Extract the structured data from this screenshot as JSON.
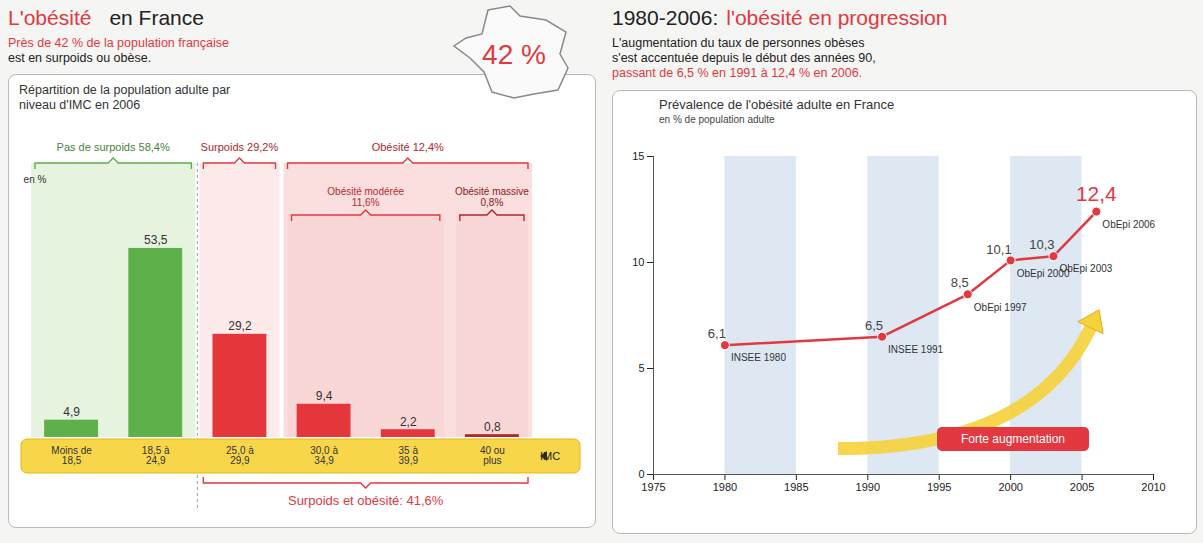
{
  "chart_data": [
    {
      "type": "bar",
      "title": "L'obésité en France",
      "subtitle": [
        "Près de 42 % de la population française",
        "est en surpoids ou obèse."
      ],
      "map_label": "42 %",
      "chart_title": "Répartition de la population adulte par niveau d'IMC en 2006",
      "unit_label": "en %",
      "x_label": "IMC",
      "categories": [
        "Moins de 18,5",
        "18,5 à 24,9",
        "25,0 à 29,9",
        "30,0 à 34,9",
        "35 à 39,9",
        "40 ou plus"
      ],
      "values": [
        4.9,
        53.5,
        29.2,
        9.4,
        2.2,
        0.8
      ],
      "value_labels": [
        "4,9",
        "53,5",
        "29,2",
        "9,4",
        "2,2",
        "0,8"
      ],
      "colors": [
        "#5db04a",
        "#5db04a",
        "#e5363c",
        "#e5363c",
        "#e5363c",
        "#b0282b"
      ],
      "ylim": [
        0,
        60
      ],
      "tick_labels": false,
      "data_labels": true,
      "groups": [
        {
          "name": "Pas de surpoids",
          "share": "58,4%",
          "categories": [
            "Moins de 18,5",
            "18,5 à 24,9"
          ]
        },
        {
          "name": "Surpoids",
          "share": "29,2%",
          "categories": [
            "25,0 à 29,9"
          ]
        },
        {
          "name": "Obésité",
          "share": "12,4%",
          "categories": [
            "30,0 à 34,9",
            "35 à 39,9",
            "40 ou plus"
          ],
          "subgroups": [
            {
              "name": "Obésité modérée",
              "share": "11,6%",
              "categories": [
                "30,0 à 34,9",
                "35 à 39,9"
              ]
            },
            {
              "name": "Obésité massive",
              "share": "0,8%",
              "categories": [
                "40 ou plus"
              ]
            }
          ]
        }
      ],
      "total": {
        "label": "Surpoids et obésité: 41,6%",
        "categories": [
          "25,0 à 29,9",
          "30,0 à 34,9",
          "35 à 39,9",
          "40 ou plus"
        ]
      }
    },
    {
      "type": "line",
      "title": "1980-2006: l'obésité en progression",
      "subtitle": [
        "L'augmentation du taux de personnes obèses",
        "s'est accentuée depuis le début des années 90,",
        "passant de 6,5 % en 1991 à 12,4 % en 2006."
      ],
      "chart_title": "Prévalence de l'obésité adulte en France",
      "y_label": "en % de population adulte",
      "x": [
        1980,
        1991,
        1997,
        2000,
        2003,
        2006
      ],
      "values": [
        6.1,
        6.5,
        8.5,
        10.1,
        10.3,
        12.4
      ],
      "value_labels": [
        "6,1",
        "6,5",
        "8,5",
        "10,1",
        "10,3",
        "12,4"
      ],
      "point_labels": [
        "INSEE 1980",
        "INSEE 1991",
        "ObEpi 1997",
        "ObEpi 2000",
        "ObEpi 2003",
        "ObEpi 2006"
      ],
      "color": "#e2383f",
      "marker": "circle",
      "data_labels": true,
      "grid": false,
      "xlim": [
        1975,
        2010
      ],
      "xticks": [
        1975,
        1980,
        1985,
        1990,
        1995,
        2000,
        2005,
        2010
      ],
      "ylim": [
        0,
        15
      ],
      "yticks": [
        0,
        5,
        10,
        15
      ],
      "annotation": "Forte augmentation"
    }
  ]
}
